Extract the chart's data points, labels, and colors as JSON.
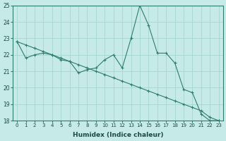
{
  "xlabel": "Humidex (Indice chaleur)",
  "ylabel": "",
  "background_color": "#c5eae7",
  "grid_color": "#a8d5d0",
  "line_color": "#2e7d6e",
  "x_values": [
    0,
    1,
    2,
    3,
    4,
    5,
    6,
    7,
    8,
    9,
    10,
    11,
    12,
    13,
    14,
    15,
    16,
    17,
    18,
    19,
    20,
    21,
    22,
    23
  ],
  "series1": [
    22.8,
    21.8,
    22.0,
    22.1,
    22.0,
    21.7,
    21.6,
    20.9,
    21.1,
    21.2,
    21.7,
    22.0,
    21.2,
    23.0,
    25.0,
    23.8,
    22.1,
    22.1,
    21.5,
    19.9,
    19.7,
    18.4,
    18.0,
    18.0
  ],
  "series2": [
    22.8,
    22.6,
    22.4,
    22.2,
    22.0,
    21.8,
    21.6,
    21.4,
    21.2,
    21.0,
    20.8,
    20.6,
    20.4,
    20.2,
    20.0,
    19.8,
    19.6,
    19.4,
    19.2,
    19.0,
    18.8,
    18.6,
    18.2,
    18.0
  ],
  "ylim": [
    18,
    25
  ],
  "xlim": [
    -0.5,
    23.5
  ],
  "yticks": [
    18,
    19,
    20,
    21,
    22,
    23,
    24,
    25
  ],
  "xticks": [
    0,
    1,
    2,
    3,
    4,
    5,
    6,
    7,
    8,
    9,
    10,
    11,
    12,
    13,
    14,
    15,
    16,
    17,
    18,
    19,
    20,
    21,
    22,
    23
  ]
}
